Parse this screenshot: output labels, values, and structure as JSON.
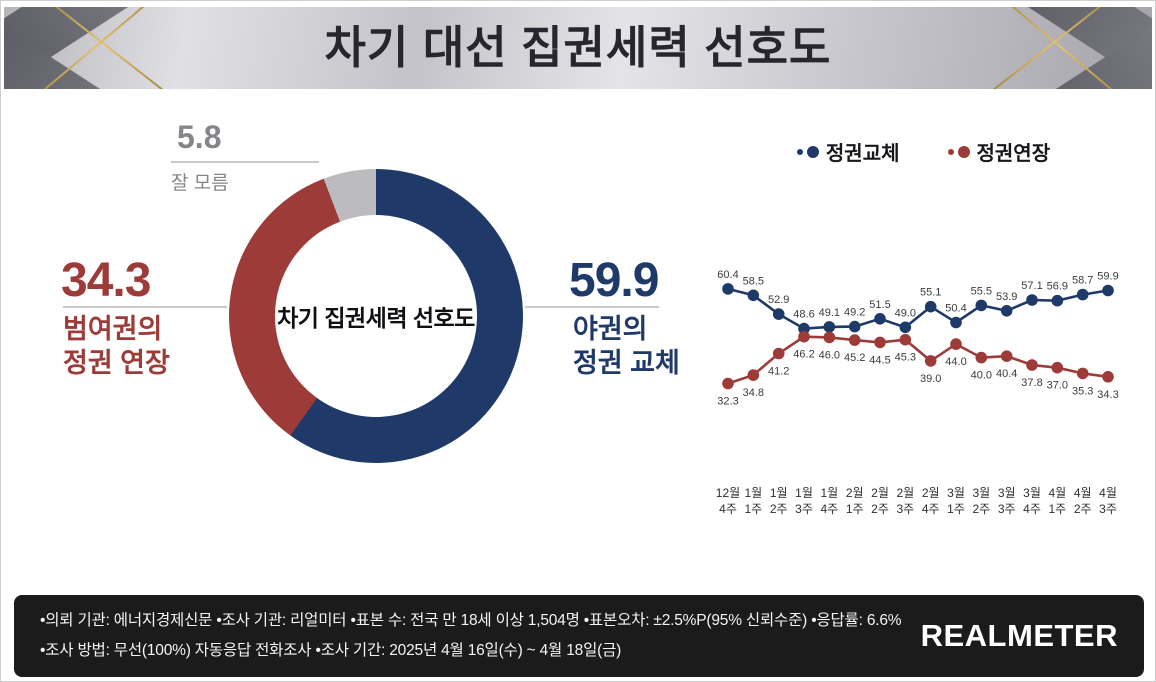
{
  "header": {
    "title": "차기 대선 집권세력 선호도"
  },
  "colors": {
    "navy": "#1F3A68",
    "red": "#9C3B38",
    "donut_gray": "#BCBCBF",
    "label_gray": "#85858A",
    "gold": "#C9A85C",
    "header_text": "#26262E",
    "footer_bg": "#1B1B1B"
  },
  "donut_callouts": {
    "unknown_value": "5.8",
    "unknown_label": "잘 모름",
    "left_value": "34.3",
    "left_label_line1": "범여권의",
    "left_label_line2": "정권 연장",
    "right_value": "59.9",
    "right_label_line1": "야권의",
    "right_label_line2": "정권 교체"
  },
  "chart_data": [
    {
      "type": "pie",
      "donut": true,
      "title": "차기 집권세력 선호도",
      "labels": [
        "야권의 정권 교체",
        "범여권의 정권 연장",
        "잘 모름"
      ],
      "values": [
        59.9,
        34.3,
        5.8
      ],
      "colors": [
        "#1F3A68",
        "#9C3B38",
        "#BCBCBF"
      ],
      "start_angle": "top",
      "direction": "clockwise"
    },
    {
      "type": "line",
      "categories": [
        [
          "12월",
          "4주"
        ],
        [
          "1월",
          "1주"
        ],
        [
          "1월",
          "2주"
        ],
        [
          "1월",
          "3주"
        ],
        [
          "1월",
          "4주"
        ],
        [
          "2월",
          "1주"
        ],
        [
          "2월",
          "2주"
        ],
        [
          "2월",
          "3주"
        ],
        [
          "2월",
          "4주"
        ],
        [
          "3월",
          "1주"
        ],
        [
          "3월",
          "2주"
        ],
        [
          "3월",
          "3주"
        ],
        [
          "3월",
          "4주"
        ],
        [
          "4월",
          "1주"
        ],
        [
          "4월",
          "2주"
        ],
        [
          "4월",
          "3주"
        ]
      ],
      "series": [
        {
          "name": "정권교체",
          "color": "#1F3A68",
          "values": [
            60.4,
            58.5,
            52.9,
            48.6,
            49.1,
            49.2,
            51.5,
            49.0,
            55.1,
            50.4,
            55.5,
            53.9,
            57.1,
            56.9,
            58.7,
            59.9
          ]
        },
        {
          "name": "정권연장",
          "color": "#9C3B38",
          "values": [
            32.3,
            34.8,
            41.2,
            46.2,
            46.0,
            45.2,
            44.5,
            45.3,
            39.0,
            44.0,
            40.0,
            40.4,
            37.8,
            37.0,
            35.3,
            34.3
          ]
        }
      ],
      "ylim": [
        28,
        66
      ],
      "legend_position": "top",
      "grid": false,
      "data_labels": true
    }
  ],
  "footer": {
    "line1": "•의뢰 기관: 에너지경제신문 •조사 기관: 리얼미터 •표본 수: 전국 만 18세 이상 1,504명 •표본오차: ±2.5%P(95% 신뢰수준) •응답률: 6.6%",
    "line2": "•조사 방법: 무선(100%) 자동응답 전화조사 •조사 기간: 2025년 4월 16일(수) ~ 4월 18일(금)",
    "logo": "REALMETER"
  }
}
